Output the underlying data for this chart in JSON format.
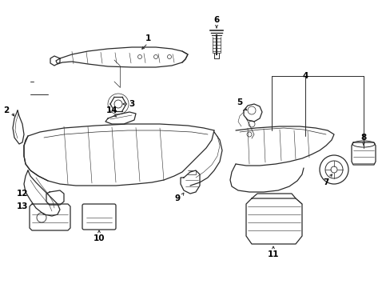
{
  "background_color": "#ffffff",
  "line_color": "#2a2a2a",
  "label_color": "#000000",
  "figsize": [
    4.89,
    3.6
  ],
  "dpi": 100,
  "xlim": [
    0,
    489
  ],
  "ylim": [
    0,
    360
  ]
}
